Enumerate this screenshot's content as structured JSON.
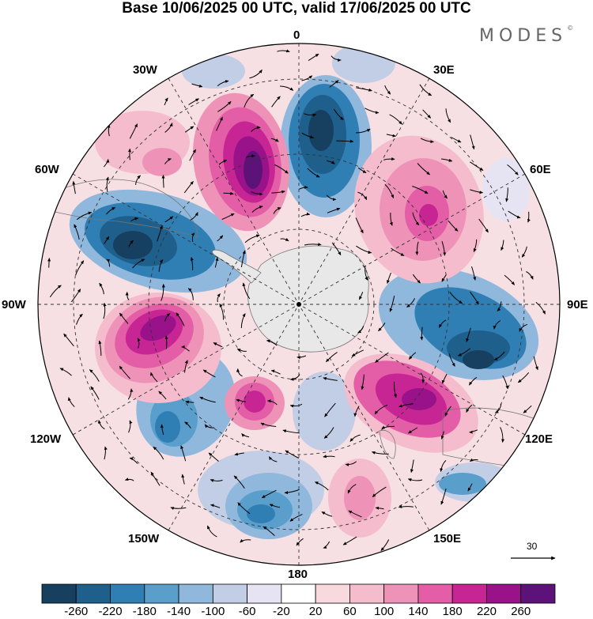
{
  "title": "Base 10/06/2025 00 UTC, valid 17/06/2025 00 UTC",
  "logo": {
    "text": "MODES",
    "mark": "©"
  },
  "longitude_labels": {
    "lon_0": "0",
    "lon_30e": "30E",
    "lon_60e": "60E",
    "lon_90e": "90E",
    "lon_120e": "120E",
    "lon_150e": "150E",
    "lon_180": "180",
    "lon_150w": "150W",
    "lon_120w": "120W",
    "lon_90w": "90W",
    "lon_60w": "60W",
    "lon_30w": "30W"
  },
  "reference_vector": {
    "label": "30"
  },
  "colorbar": {
    "ticks": [
      "-260",
      "-220",
      "-180",
      "-140",
      "-100",
      "-60",
      "-20",
      "20",
      "60",
      "100",
      "140",
      "180",
      "220",
      "260"
    ],
    "colors": [
      "#173f5f",
      "#1e5f8c",
      "#2f7fb5",
      "#5a9fcc",
      "#8fb8dc",
      "#c2cde6",
      "#e6e4f2",
      "#ffffff",
      "#f7d9de",
      "#f4bccd",
      "#ee93b7",
      "#e35ea6",
      "#c82594",
      "#99128a",
      "#5c1278"
    ]
  },
  "features": {
    "projection": "south polar stereographic",
    "field": "anomaly contours with wind vectors",
    "graticule": "dashed"
  }
}
